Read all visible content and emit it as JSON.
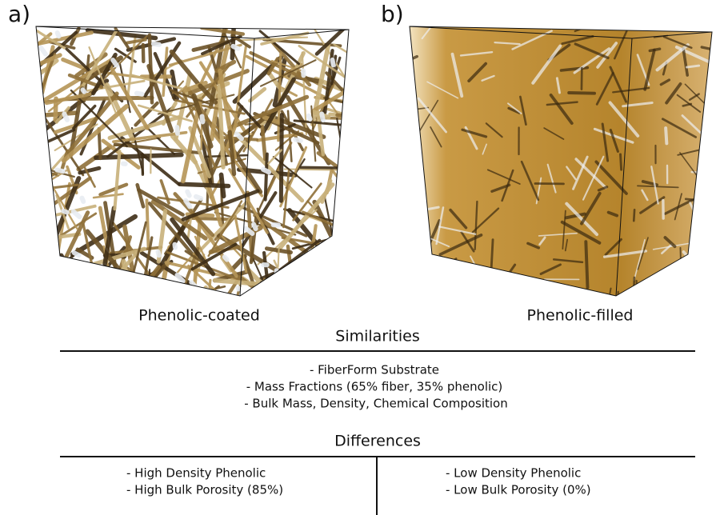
{
  "panels": [
    {
      "letter": "a)",
      "caption": "Phenolic-coated"
    },
    {
      "letter": "b)",
      "caption": "Phenolic-filled"
    }
  ],
  "similarities": {
    "title": "Similarities",
    "items": [
      "- FiberForm Substrate",
      "- Mass Fractions (65% fiber, 35% phenolic)",
      "- Bulk Mass, Density, Chemical Composition"
    ]
  },
  "differences": {
    "title": "Differences",
    "left": [
      "- High Density Phenolic",
      "- High Bulk Porosity (85%)"
    ],
    "right": [
      "- Low Density Phenolic",
      "- Low Bulk Porosity (0%)"
    ]
  }
}
